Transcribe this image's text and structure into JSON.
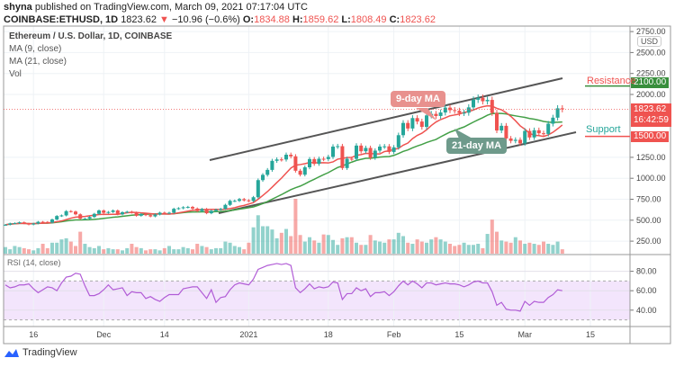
{
  "header": {
    "author": "shyna",
    "published_text": "published on TradingView.com, March 09, 2021 07:17:04 UTC",
    "symbol": "COINBASE:ETHUSD, 1D",
    "last": "1823.62",
    "change": "−10.96 (−0.6%)",
    "o_label": "O:",
    "o": "1834.88",
    "h_label": "H:",
    "h": "1859.62",
    "l_label": "L:",
    "l": "1808.49",
    "c_label": "C:",
    "c": "1823.62"
  },
  "legend": {
    "title": "Ethereum / U.S. Dollar, 1D, COINBASE",
    "ma9": "MA (9, close)",
    "ma21": "MA (21, close)",
    "vol": "Vol"
  },
  "annotations": {
    "ma9": "9-day MA",
    "ma21": "21-day MA",
    "resistance": "Resistance",
    "resistance_price": "2100.00",
    "support": "Support",
    "support_price": "1500.00"
  },
  "price_tag": {
    "price": "1823.62",
    "countdown": "16:42:59"
  },
  "currency": "USD",
  "rsi_label": "RSI (14, close)",
  "footer": {
    "brand": "TradingView"
  },
  "colors": {
    "up": "#26a69a",
    "down": "#ef5350",
    "ma9": "#ef5350",
    "ma21": "#43a047",
    "rsi": "#b15cd6",
    "channel": "#555555"
  },
  "chart_data": {
    "type": "candlestick",
    "start_date": "2020-11-10",
    "price_ticks": [
      "2750.00",
      "2500.00",
      "2250.00",
      "2000.00",
      "1250.00",
      "1000.00",
      "750.00",
      "500.00",
      "250.00"
    ],
    "rsi_ticks": [
      "80.00",
      "60.00",
      "40.00"
    ],
    "rsi_bands": [
      30,
      70
    ],
    "x_ticks": [
      {
        "label": "16",
        "date": "2020-11-16"
      },
      {
        "label": "Dec",
        "date": "2020-12-01"
      },
      {
        "label": "14",
        "date": "2020-12-14"
      },
      {
        "label": "2021",
        "date": "2021-01-01"
      },
      {
        "label": "18",
        "date": "2021-01-18"
      },
      {
        "label": "Feb",
        "date": "2021-02-01"
      },
      {
        "label": "15",
        "date": "2021-02-15"
      },
      {
        "label": "Mar",
        "date": "2021-03-01"
      },
      {
        "label": "15",
        "date": "2021-03-15"
      }
    ],
    "close": [
      446,
      462,
      465,
      475,
      461,
      448,
      460,
      481,
      479,
      471,
      509,
      550,
      557,
      608,
      603,
      570,
      518,
      518,
      538,
      576,
      616,
      588,
      598,
      616,
      570,
      595,
      601,
      591,
      553,
      573,
      560,
      545,
      568,
      590,
      586,
      589,
      636,
      643,
      654,
      658,
      639,
      609,
      634,
      583,
      612,
      626,
      635,
      683,
      731,
      731,
      751,
      737,
      729,
      774,
      978,
      1041,
      1100,
      1208,
      1225,
      1224,
      1281,
      1262,
      1090,
      1043,
      1131,
      1229,
      1172,
      1233,
      1229,
      1255,
      1378,
      1383,
      1122,
      1233,
      1232,
      1390,
      1322,
      1362,
      1245,
      1330,
      1378,
      1381,
      1314,
      1369,
      1514,
      1660,
      1594,
      1718,
      1677,
      1613,
      1750,
      1768,
      1743,
      1785,
      1843,
      1813,
      1805,
      1778,
      1782,
      1846,
      1937,
      1960,
      1919,
      1935,
      1780,
      1570,
      1626,
      1475,
      1446,
      1459,
      1416,
      1565,
      1487,
      1573,
      1537,
      1529,
      1651,
      1723,
      1835,
      1823
    ],
    "volume_relative": [
      12,
      8,
      14,
      12,
      10,
      8,
      6,
      10,
      18,
      10,
      20,
      20,
      26,
      28,
      22,
      14,
      40,
      18,
      12,
      10,
      14,
      8,
      10,
      8,
      8,
      6,
      10,
      18,
      12,
      10,
      6,
      8,
      8,
      6,
      10,
      14,
      8,
      8,
      12,
      10,
      8,
      18,
      14,
      12,
      8,
      10,
      10,
      22,
      20,
      14,
      12,
      8,
      20,
      48,
      70,
      50,
      50,
      44,
      28,
      38,
      45,
      32,
      100,
      34,
      22,
      30,
      24,
      20,
      35,
      34,
      25,
      16,
      28,
      30,
      30,
      20,
      16,
      16,
      34,
      24,
      22,
      20,
      26,
      26,
      38,
      32,
      20,
      18,
      26,
      22,
      20,
      26,
      30,
      26,
      22,
      18,
      14,
      16,
      20,
      16,
      16,
      18,
      10,
      36,
      62,
      40,
      24,
      22,
      20,
      30,
      24,
      18,
      20,
      18,
      16,
      22,
      18,
      16,
      22,
      8
    ],
    "rsi": [
      66,
      63,
      64,
      66,
      66,
      67,
      62,
      58,
      61,
      64,
      63,
      60,
      68,
      74,
      75,
      78,
      77,
      65,
      55,
      55,
      57,
      61,
      66,
      61,
      62,
      63,
      55,
      59,
      58,
      58,
      52,
      54,
      51,
      49,
      53,
      56,
      56,
      56,
      62,
      63,
      64,
      64,
      58,
      52,
      61,
      48,
      53,
      54,
      61,
      66,
      68,
      67,
      66,
      72,
      82,
      84,
      86,
      87,
      88,
      87,
      88,
      86,
      63,
      58,
      62,
      67,
      62,
      64,
      63,
      64,
      69,
      68,
      51,
      57,
      57,
      63,
      60,
      62,
      54,
      58,
      58,
      59,
      55,
      59,
      65,
      70,
      66,
      70,
      67,
      63,
      68,
      68,
      66,
      67,
      68,
      67,
      67,
      66,
      64,
      66,
      69,
      70,
      68,
      68,
      59,
      45,
      48,
      41,
      40,
      40,
      39,
      49,
      45,
      49,
      48,
      48,
      53,
      56,
      61,
      60
    ],
    "resistance": 2100,
    "support": 1500
  }
}
